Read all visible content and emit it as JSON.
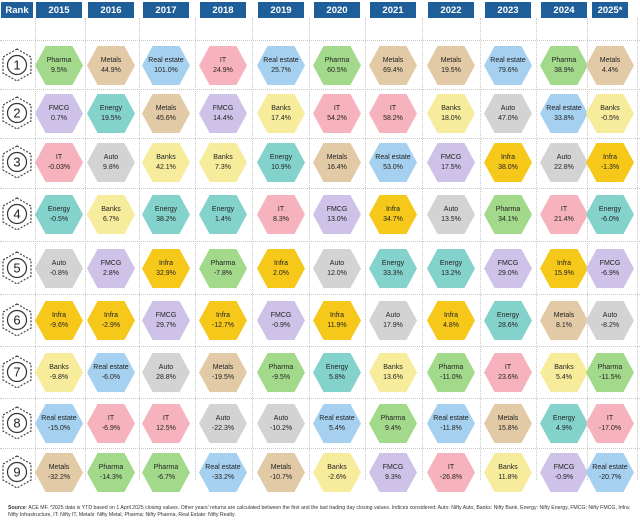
{
  "rank_header": "Rank",
  "chart_data": {
    "type": "table",
    "years": [
      "2015",
      "2016",
      "2017",
      "2018",
      "2019",
      "2020",
      "2021",
      "2022",
      "2023",
      "2024",
      "2025*"
    ],
    "ranks": [
      "1",
      "2",
      "3",
      "4",
      "5",
      "6",
      "7",
      "8",
      "9"
    ],
    "sector_colors": {
      "Pharma": "#a3d98b",
      "Metals": "#e2caa6",
      "Real estate": "#a6d0ef",
      "IT": "#f6b3bd",
      "FMCG": "#cfc2e8",
      "Energy": "#84d2cc",
      "Banks": "#f7ec9c",
      "Auto": "#d3d3d3",
      "Infra": "#f5c81a"
    },
    "columns": [
      [
        [
          "Pharma",
          "9.5%"
        ],
        [
          "FMCG",
          "0.7%"
        ],
        [
          "IT",
          "-0.03%"
        ],
        [
          "Energy",
          "-0.5%"
        ],
        [
          "Auto",
          "-0.8%"
        ],
        [
          "Infra",
          "-9.6%"
        ],
        [
          "Banks",
          "-9.8%"
        ],
        [
          "Real estate",
          "-15.0%"
        ],
        [
          "Metals",
          "-32.2%"
        ]
      ],
      [
        [
          "Metals",
          "44.9%"
        ],
        [
          "Energy",
          "19.5%"
        ],
        [
          "Auto",
          "9.8%"
        ],
        [
          "Banks",
          "6.7%"
        ],
        [
          "FMCG",
          "2.8%"
        ],
        [
          "Infra",
          "-2.9%"
        ],
        [
          "Real estate",
          "-6.0%"
        ],
        [
          "IT",
          "-6.9%"
        ],
        [
          "Pharma",
          "-14.3%"
        ]
      ],
      [
        [
          "Real estate",
          "101.0%"
        ],
        [
          "Metals",
          "45.6%"
        ],
        [
          "Banks",
          "42.1%"
        ],
        [
          "Energy",
          "38.2%"
        ],
        [
          "Infra",
          "32.9%"
        ],
        [
          "FMCG",
          "29.7%"
        ],
        [
          "Auto",
          "28.8%"
        ],
        [
          "IT",
          "12.5%"
        ],
        [
          "Pharma",
          "-6.7%"
        ]
      ],
      [
        [
          "IT",
          "24.9%"
        ],
        [
          "FMCG",
          "14.4%"
        ],
        [
          "Banks",
          "7.3%"
        ],
        [
          "Energy",
          "1.4%"
        ],
        [
          "Pharma",
          "-7.8%"
        ],
        [
          "Infra",
          "-12.7%"
        ],
        [
          "Metals",
          "-19.5%"
        ],
        [
          "Auto",
          "-22.3%"
        ],
        [
          "Real estate",
          "-33.2%"
        ]
      ],
      [
        [
          "Real estate",
          "25.7%"
        ],
        [
          "Banks",
          "17.4%"
        ],
        [
          "Energy",
          "10.9%"
        ],
        [
          "IT",
          "8.3%"
        ],
        [
          "Infra",
          "2.0%"
        ],
        [
          "FMCG",
          "-0.9%"
        ],
        [
          "Pharma",
          "-9.5%"
        ],
        [
          "Auto",
          "-10.2%"
        ],
        [
          "Metals",
          "-10.7%"
        ]
      ],
      [
        [
          "Pharma",
          "60.5%"
        ],
        [
          "IT",
          "54.2%"
        ],
        [
          "Metals",
          "16.4%"
        ],
        [
          "FMCG",
          "13.0%"
        ],
        [
          "Auto",
          "12.0%"
        ],
        [
          "Infra",
          "11.9%"
        ],
        [
          "Energy",
          "5.8%"
        ],
        [
          "Real estate",
          "5.4%"
        ],
        [
          "Banks",
          "-2.6%"
        ]
      ],
      [
        [
          "Metals",
          "69.4%"
        ],
        [
          "IT",
          "58.2%"
        ],
        [
          "Real estate",
          "53.0%"
        ],
        [
          "Infra",
          "34.7%"
        ],
        [
          "Energy",
          "33.3%"
        ],
        [
          "Auto",
          "17.9%"
        ],
        [
          "Banks",
          "13.6%"
        ],
        [
          "Pharma",
          "9.4%"
        ],
        [
          "FMCG",
          "9.3%"
        ]
      ],
      [
        [
          "Metals",
          "19.5%"
        ],
        [
          "Banks",
          "18.0%"
        ],
        [
          "FMCG",
          "17.5%"
        ],
        [
          "Auto",
          "13.5%"
        ],
        [
          "Energy",
          "13.2%"
        ],
        [
          "Infra",
          "4.8%"
        ],
        [
          "Pharma",
          "-11.0%"
        ],
        [
          "Real estate",
          "-11.8%"
        ],
        [
          "IT",
          "-26.8%"
        ]
      ],
      [
        [
          "Real estate",
          "79.6%"
        ],
        [
          "Auto",
          "47.0%"
        ],
        [
          "Infra",
          "38.0%"
        ],
        [
          "Pharma",
          "34.1%"
        ],
        [
          "FMCG",
          "29.0%"
        ],
        [
          "Energy",
          "28.6%"
        ],
        [
          "IT",
          "23.6%"
        ],
        [
          "Metals",
          "15.8%"
        ],
        [
          "Banks",
          "11.8%"
        ]
      ],
      [
        [
          "Pharma",
          "38.9%"
        ],
        [
          "Real estate",
          "33.8%"
        ],
        [
          "Auto",
          "22.8%"
        ],
        [
          "IT",
          "21.4%"
        ],
        [
          "Infra",
          "15.9%"
        ],
        [
          "Metals",
          "8.1%"
        ],
        [
          "Banks",
          "5.4%"
        ],
        [
          "Energy",
          "4.9%"
        ],
        [
          "FMCG",
          "-0.9%"
        ]
      ],
      [
        [
          "Metals",
          "4.4%"
        ],
        [
          "Banks",
          "-0.5%"
        ],
        [
          "Infra",
          "-1.3%"
        ],
        [
          "Energy",
          "-6.0%"
        ],
        [
          "FMCG",
          "-6.9%"
        ],
        [
          "Auto",
          "-8.2%"
        ],
        [
          "Pharma",
          "-11.5%"
        ],
        [
          "IT",
          "-17.0%"
        ],
        [
          "Real estate",
          "-20.7%"
        ]
      ]
    ]
  },
  "footnote": {
    "source_label": "Source",
    "text": ": ACE MF. *2025 data is YTD based on 1 April 2025 closing values. Other years' returns are calculated between the first and the last trading day closing values. Indices considered: Auto: Nifty Auto, Banks: Nifty Bank, Energy: Nifty Energy, FMCG: Nifty FMCG, Infra: Nifty Infrastructure, IT: Nifty IT, Metals: Nifty Metal, Pharma: Nifty Pharma, Real Estate: Nifty Realty."
  }
}
